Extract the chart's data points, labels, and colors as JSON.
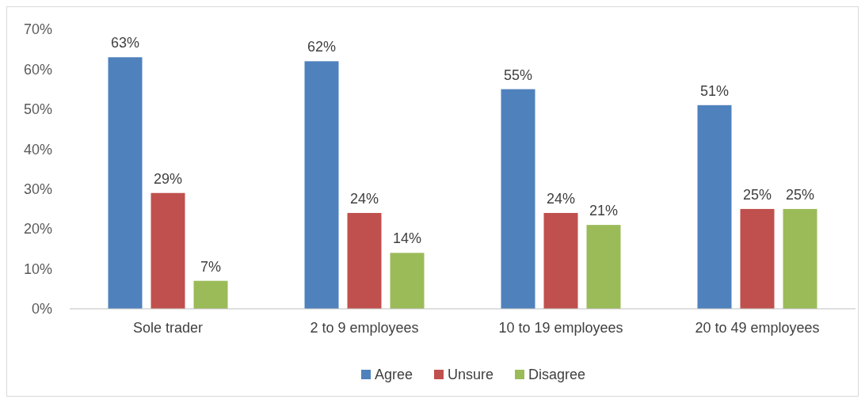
{
  "chart_data": {
    "type": "bar",
    "categories": [
      "Sole trader",
      "2 to 9 employees",
      "10 to 19 employees",
      "20 to 49 employees"
    ],
    "series": [
      {
        "name": "Agree",
        "color": "#4f81bd",
        "values": [
          63,
          62,
          55,
          51
        ],
        "value_labels": [
          "63%",
          "62%",
          "55%",
          "51%"
        ]
      },
      {
        "name": "Unsure",
        "color": "#c0504d",
        "values": [
          29,
          24,
          24,
          25
        ],
        "value_labels": [
          "29%",
          "24%",
          "24%",
          "25%"
        ]
      },
      {
        "name": "Disagree",
        "color": "#9bbb59",
        "values": [
          7,
          14,
          21,
          25
        ],
        "value_labels": [
          "7%",
          "14%",
          "21%",
          "25%"
        ]
      }
    ],
    "ylim": [
      0,
      70
    ],
    "yticks": [
      {
        "value": 0,
        "label": "0%"
      },
      {
        "value": 10,
        "label": "10%"
      },
      {
        "value": 20,
        "label": "20%"
      },
      {
        "value": 30,
        "label": "30%"
      },
      {
        "value": 40,
        "label": "40%"
      },
      {
        "value": 50,
        "label": "50%"
      },
      {
        "value": 60,
        "label": "60%"
      },
      {
        "value": 70,
        "label": "70%"
      }
    ],
    "grid": false,
    "legend": "bottom"
  }
}
